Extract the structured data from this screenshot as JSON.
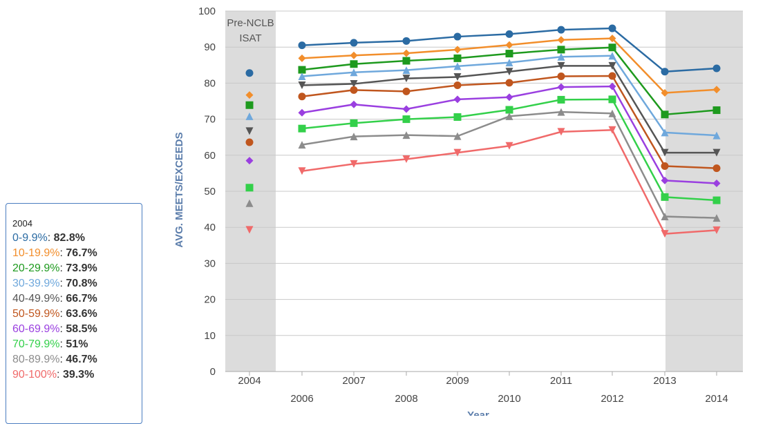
{
  "chart_data": {
    "type": "line",
    "ylabel": "AVG. MEETS/EXCEEDS",
    "xlabel": "Year",
    "ylim": [
      0,
      100
    ],
    "y_ticks": [
      0,
      10,
      20,
      30,
      40,
      50,
      60,
      70,
      80,
      90,
      100
    ],
    "x": [
      "2004",
      "2006",
      "2007",
      "2008",
      "2009",
      "2010",
      "2011",
      "2012",
      "2013",
      "2014"
    ],
    "grid": true,
    "shaded_bands": [
      {
        "x": [
          "2004"
        ],
        "label_lines": [
          "Pre-NCLB",
          "ISAT"
        ]
      },
      {
        "x": [
          "2013",
          "2014"
        ],
        "label_lines": []
      }
    ],
    "series": [
      {
        "name": "0-9.9%",
        "color": "#2b6ba3",
        "marker": "circle",
        "values": [
          82.8,
          90.5,
          91.2,
          91.7,
          92.9,
          93.6,
          94.8,
          95.2,
          83.2,
          84.1
        ]
      },
      {
        "name": "10-19.9%",
        "color": "#f28e2b",
        "marker": "diamond",
        "values": [
          76.7,
          86.9,
          87.7,
          88.3,
          89.3,
          90.6,
          92.0,
          92.4,
          77.3,
          78.2
        ]
      },
      {
        "name": "20-29.9%",
        "color": "#1e9a1e",
        "marker": "square",
        "values": [
          73.9,
          83.7,
          85.3,
          86.2,
          86.9,
          88.2,
          89.3,
          89.9,
          71.3,
          72.5
        ]
      },
      {
        "name": "30-39.9%",
        "color": "#6fa8dc",
        "marker": "triangle",
        "values": [
          70.8,
          81.9,
          83.0,
          83.6,
          84.7,
          85.7,
          87.3,
          87.6,
          66.3,
          65.5
        ]
      },
      {
        "name": "40-49.9%",
        "color": "#555555",
        "marker": "triangle-down",
        "values": [
          66.7,
          79.4,
          79.8,
          81.3,
          81.7,
          83.2,
          84.8,
          84.8,
          60.7,
          60.7
        ]
      },
      {
        "name": "50-59.9%",
        "color": "#c0561e",
        "marker": "circle",
        "values": [
          63.6,
          76.3,
          78.1,
          77.7,
          79.4,
          80.1,
          81.9,
          82.0,
          57.0,
          56.4
        ]
      },
      {
        "name": "60-69.9%",
        "color": "#9a3fe0",
        "marker": "diamond",
        "values": [
          58.5,
          71.8,
          74.1,
          72.8,
          75.5,
          76.1,
          78.9,
          79.1,
          53.0,
          52.2
        ]
      },
      {
        "name": "70-79.9%",
        "color": "#33d04a",
        "marker": "square",
        "values": [
          51.0,
          67.4,
          68.9,
          70.0,
          70.6,
          72.6,
          75.4,
          75.5,
          48.4,
          47.5
        ]
      },
      {
        "name": "80-89.9%",
        "color": "#8c8c8c",
        "marker": "triangle",
        "values": [
          46.7,
          62.9,
          65.2,
          65.6,
          65.3,
          70.8,
          72.0,
          71.6,
          43.0,
          42.6
        ]
      },
      {
        "name": "90-100%",
        "color": "#f06a6a",
        "marker": "triangle-down",
        "values": [
          39.3,
          55.6,
          57.6,
          58.9,
          60.7,
          62.6,
          66.5,
          67.0,
          38.2,
          39.2
        ]
      }
    ]
  },
  "tooltip": {
    "title": "2004",
    "rows": [
      {
        "label": "0-9.9%",
        "value": "82.8%",
        "color": "#2b6ba3"
      },
      {
        "label": "10-19.9%",
        "value": "76.7%",
        "color": "#f28e2b"
      },
      {
        "label": "20-29.9%",
        "value": "73.9%",
        "color": "#1e9a1e"
      },
      {
        "label": "30-39.9%",
        "value": "70.8%",
        "color": "#6fa8dc"
      },
      {
        "label": "40-49.9%",
        "value": "66.7%",
        "color": "#555555"
      },
      {
        "label": "50-59.9%",
        "value": "63.6%",
        "color": "#c0561e"
      },
      {
        "label": "60-69.9%",
        "value": "58.5%",
        "color": "#9a3fe0"
      },
      {
        "label": "70-79.9%",
        "value": "51%",
        "color": "#33d04a"
      },
      {
        "label": "80-89.9%",
        "value": "46.7%",
        "color": "#8c8c8c"
      },
      {
        "label": "90-100%",
        "value": "39.3%",
        "color": "#f06a6a"
      }
    ]
  }
}
